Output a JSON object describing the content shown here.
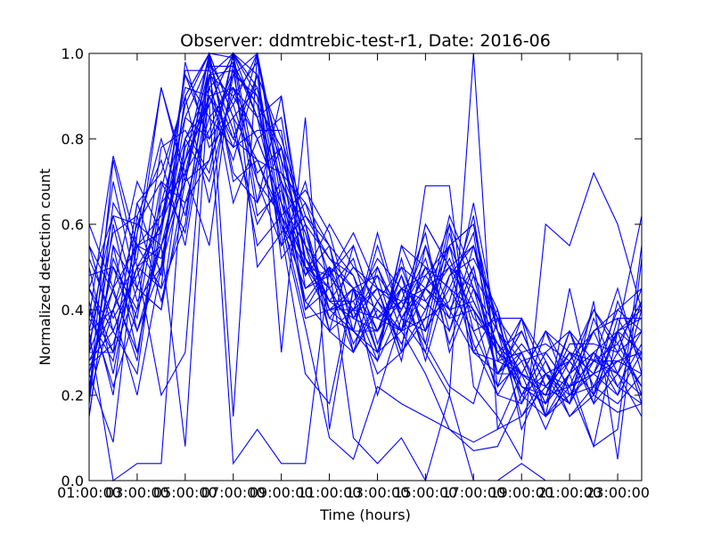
{
  "chart_data": {
    "type": "line",
    "title": "Observer: ddmtrebic-test-r1, Date: 2016-06",
    "xlabel": "Time (hours)",
    "ylabel": "Normalized detection count",
    "xlim": [
      1,
      24
    ],
    "ylim": [
      0.0,
      1.0
    ],
    "x_ticks": [
      {
        "value": 1,
        "label": "01:00:00"
      },
      {
        "value": 3,
        "label": "03:00:00"
      },
      {
        "value": 5,
        "label": "05:00:00"
      },
      {
        "value": 7,
        "label": "07:00:00"
      },
      {
        "value": 9,
        "label": "09:00:00"
      },
      {
        "value": 11,
        "label": "11:00:00"
      },
      {
        "value": 13,
        "label": "13:00:00"
      },
      {
        "value": 15,
        "label": "15:00:00"
      },
      {
        "value": 17,
        "label": "17:00:00"
      },
      {
        "value": 19,
        "label": "19:00:00"
      },
      {
        "value": 21,
        "label": "21:00:00"
      },
      {
        "value": 23,
        "label": "23:00:00"
      }
    ],
    "y_ticks": [
      {
        "value": 0.0,
        "label": "0.0"
      },
      {
        "value": 0.2,
        "label": "0.2"
      },
      {
        "value": 0.4,
        "label": "0.4"
      },
      {
        "value": 0.6,
        "label": "0.6"
      },
      {
        "value": 0.8,
        "label": "0.8"
      },
      {
        "value": 1.0,
        "label": "1.0"
      }
    ],
    "grid": false,
    "legend": "none",
    "line_color": "#0000ff",
    "x": [
      1,
      2,
      3,
      4,
      5,
      6,
      7,
      8,
      9,
      10,
      11,
      12,
      13,
      14,
      15,
      16,
      17,
      18,
      19,
      20,
      21,
      22,
      23,
      24
    ],
    "series": [
      {
        "values": [
          0.3,
          0.45,
          0.55,
          0.62,
          0.8,
          0.92,
          0.98,
          0.85,
          0.7,
          0.55,
          0.48,
          0.4,
          0.38,
          0.42,
          0.45,
          0.5,
          0.55,
          0.35,
          0.25,
          0.2,
          0.22,
          0.25,
          0.28,
          0.3
        ]
      },
      {
        "values": [
          0.45,
          0.35,
          0.5,
          0.6,
          0.75,
          0.88,
          1.0,
          0.9,
          0.75,
          0.6,
          0.52,
          0.45,
          0.4,
          0.35,
          0.5,
          0.45,
          0.4,
          0.3,
          0.22,
          0.18,
          0.25,
          0.3,
          0.35,
          0.4
        ]
      },
      {
        "values": [
          0.25,
          0.5,
          0.4,
          0.55,
          0.7,
          0.95,
          0.9,
          0.8,
          0.65,
          0.5,
          0.45,
          0.35,
          0.3,
          0.45,
          0.4,
          0.55,
          0.6,
          0.28,
          0.3,
          0.15,
          0.2,
          0.22,
          0.18,
          0.25
        ]
      },
      {
        "values": [
          0.4,
          0.3,
          0.45,
          0.65,
          0.85,
          0.8,
          0.95,
          1.0,
          0.72,
          0.58,
          0.4,
          0.42,
          0.5,
          0.38,
          0.35,
          0.6,
          0.45,
          0.32,
          0.2,
          0.25,
          0.28,
          0.2,
          0.3,
          0.35
        ]
      },
      {
        "values": [
          0.2,
          0.6,
          0.35,
          0.5,
          0.9,
          1.0,
          0.85,
          0.75,
          0.6,
          0.45,
          0.5,
          0.38,
          0.45,
          0.4,
          0.55,
          0.4,
          0.5,
          0.25,
          0.35,
          0.22,
          0.18,
          0.3,
          0.25,
          0.2
        ]
      },
      {
        "values": [
          0.35,
          0.4,
          0.6,
          0.7,
          0.65,
          0.75,
          1.0,
          0.95,
          0.8,
          0.62,
          0.55,
          0.48,
          0.35,
          0.5,
          0.45,
          0.38,
          0.65,
          0.35,
          0.28,
          0.3,
          0.22,
          0.35,
          0.4,
          0.45
        ]
      },
      {
        "values": [
          0.5,
          0.25,
          0.55,
          0.45,
          0.6,
          0.98,
          0.88,
          0.7,
          0.55,
          0.7,
          0.45,
          0.3,
          0.4,
          0.35,
          0.6,
          0.5,
          0.4,
          0.2,
          0.18,
          0.35,
          0.3,
          0.25,
          0.2,
          0.3
        ]
      },
      {
        "values": [
          0.15,
          0.55,
          0.3,
          0.58,
          0.95,
          0.85,
          0.78,
          1.0,
          0.68,
          0.5,
          0.38,
          0.45,
          0.3,
          0.55,
          0.42,
          0.35,
          0.55,
          0.3,
          0.25,
          0.2,
          0.35,
          0.28,
          0.45,
          0.25
        ]
      },
      {
        "values": [
          0.3,
          0.7,
          0.45,
          0.4,
          0.8,
          0.7,
          0.92,
          0.85,
          0.9,
          0.55,
          0.42,
          0.5,
          0.45,
          0.3,
          0.38,
          0.62,
          0.48,
          0.38,
          0.3,
          0.18,
          0.25,
          0.4,
          0.3,
          0.22
        ]
      },
      {
        "values": [
          0.42,
          0.2,
          0.62,
          0.75,
          0.55,
          0.9,
          0.8,
          0.95,
          0.62,
          0.48,
          0.55,
          0.35,
          0.28,
          0.4,
          0.5,
          0.45,
          0.35,
          0.22,
          0.38,
          0.28,
          0.15,
          0.22,
          0.35,
          0.38
        ]
      },
      {
        "values": [
          0.25,
          0.45,
          0.7,
          0.58,
          0.88,
          1.0,
          0.72,
          0.65,
          0.78,
          0.6,
          0.35,
          0.4,
          0.52,
          0.45,
          0.3,
          0.55,
          0.6,
          0.35,
          0.15,
          0.22,
          0.3,
          0.18,
          0.25,
          0.42
        ]
      },
      {
        "values": [
          0.55,
          0.35,
          0.25,
          0.65,
          0.72,
          0.82,
          0.96,
          0.88,
          0.58,
          0.65,
          0.48,
          0.55,
          0.38,
          0.35,
          0.45,
          0.4,
          0.3,
          0.28,
          0.25,
          0.35,
          0.2,
          0.3,
          0.22,
          0.18
        ]
      },
      {
        "values": [
          0.2,
          0.75,
          0.5,
          0.45,
          0.98,
          0.78,
          0.85,
          0.92,
          0.7,
          0.42,
          0.5,
          0.32,
          0.42,
          0.5,
          0.35,
          0.48,
          0.52,
          0.4,
          0.22,
          0.18,
          0.28,
          0.35,
          0.38,
          0.28
        ]
      },
      {
        "values": [
          0.38,
          0.28,
          0.58,
          0.8,
          0.62,
          0.95,
          0.65,
          0.8,
          0.85,
          0.52,
          0.4,
          0.45,
          0.35,
          0.42,
          0.58,
          0.3,
          0.45,
          0.25,
          0.32,
          0.25,
          0.22,
          0.25,
          0.4,
          0.35
        ]
      },
      {
        "values": [
          0.48,
          0.5,
          0.35,
          0.55,
          0.78,
          0.88,
          1.0,
          0.7,
          0.62,
          0.68,
          0.58,
          0.38,
          0.48,
          0.3,
          0.4,
          0.52,
          0.38,
          0.32,
          0.2,
          0.3,
          0.35,
          0.22,
          0.28,
          0.3
        ]
      },
      {
        "values": [
          0.28,
          0.4,
          0.52,
          0.92,
          0.7,
          0.75,
          0.9,
          0.98,
          0.75,
          0.4,
          0.45,
          0.52,
          0.32,
          0.48,
          0.35,
          0.45,
          0.58,
          0.22,
          0.28,
          0.15,
          0.25,
          0.3,
          0.2,
          0.4
        ]
      },
      {
        "values": [
          0.35,
          0.62,
          0.42,
          0.5,
          0.85,
          0.98,
          0.82,
          0.6,
          0.7,
          0.58,
          0.38,
          0.35,
          0.55,
          0.38,
          0.48,
          0.4,
          0.42,
          0.3,
          0.35,
          0.22,
          0.3,
          0.28,
          0.32,
          0.22
        ]
      },
      {
        "values": [
          0.45,
          0.3,
          0.65,
          0.48,
          0.9,
          0.65,
          0.95,
          0.9,
          0.55,
          0.62,
          0.52,
          0.48,
          0.3,
          0.52,
          0.32,
          0.58,
          0.35,
          0.38,
          0.18,
          0.28,
          0.18,
          0.38,
          0.25,
          0.35
        ]
      },
      {
        "values": [
          0.22,
          0.52,
          0.38,
          0.7,
          0.58,
          0.92,
          0.78,
          0.82,
          0.82,
          0.45,
          0.48,
          0.4,
          0.45,
          0.28,
          0.55,
          0.35,
          0.5,
          0.25,
          0.3,
          0.32,
          0.28,
          0.2,
          0.42,
          0.28
        ]
      },
      {
        "values": [
          0.52,
          0.38,
          0.48,
          0.6,
          0.95,
          0.8,
          0.88,
          1.0,
          0.65,
          0.55,
          0.35,
          0.55,
          0.38,
          0.45,
          0.42,
          0.5,
          0.45,
          0.35,
          0.22,
          0.2,
          0.32,
          0.32,
          0.3,
          0.45
        ]
      },
      {
        "values": [
          0.18,
          0.65,
          0.55,
          0.52,
          0.75,
          1.0,
          0.7,
          0.75,
          0.72,
          0.65,
          0.55,
          0.3,
          0.5,
          0.35,
          0.38,
          0.42,
          0.62,
          0.28,
          0.38,
          0.25,
          0.2,
          0.25,
          0.35,
          0.2
        ]
      },
      {
        "values": [
          0.4,
          0.22,
          0.4,
          0.78,
          0.82,
          0.72,
          1.0,
          0.85,
          0.6,
          0.5,
          0.42,
          0.42,
          0.28,
          0.55,
          0.5,
          0.38,
          0.4,
          0.32,
          0.25,
          0.35,
          0.25,
          0.35,
          0.22,
          0.32
        ]
      },
      {
        "values": [
          0.32,
          0.58,
          0.62,
          0.42,
          0.65,
          0.85,
          0.92,
          0.72,
          0.78,
          0.48,
          0.6,
          0.5,
          0.42,
          0.32,
          0.45,
          0.55,
          0.32,
          0.2,
          0.3,
          0.18,
          0.35,
          0.18,
          0.38,
          0.38
        ]
      },
      {
        "values": [
          0.6,
          0.45,
          0.28,
          0.68,
          0.92,
          0.9,
          0.75,
          0.95,
          0.52,
          0.6,
          0.4,
          0.35,
          0.35,
          0.48,
          0.28,
          0.48,
          0.55,
          0.38,
          0.2,
          0.3,
          0.22,
          0.28,
          0.28,
          0.25
        ]
      },
      {
        "values": [
          0.27,
          0.32,
          0.5,
          0.55,
          0.7,
          0.95,
          0.96,
          0.62,
          0.68,
          0.4,
          0.5,
          0.45,
          0.48,
          0.4,
          0.52,
          0.32,
          0.48,
          0.25,
          0.35,
          0.22,
          0.28,
          0.4,
          0.32,
          0.42
        ]
      },
      {
        "values": [
          0.25,
          0.09,
          0.58,
          0.92,
          0.72,
          0.97,
          0.97,
          0.88,
          0.78,
          0.52,
          0.42,
          0.38,
          0.35,
          0.45,
          0.48,
          0.55,
          0.42,
          0.3,
          0.25,
          0.2,
          0.3,
          0.25,
          0.35,
          0.3
        ]
      },
      {
        "values": [
          0.35,
          0.0,
          0.04,
          0.04,
          0.8,
          0.88,
          0.04,
          0.12,
          0.04,
          0.04,
          0.5,
          0.1,
          0.04,
          0.1,
          0.0,
          0.2,
          0.0,
          0.0,
          0.04,
          0.0,
          0.0,
          0.0,
          0.0,
          0.0
        ]
      },
      {
        "values": [
          0.45,
          0.62,
          0.6,
          0.55,
          0.08,
          0.95,
          1.0,
          0.92,
          0.6,
          0.36,
          0.1,
          0.05,
          0.22,
          0.18,
          0.15,
          0.12,
          0.09,
          0.12,
          0.25,
          0.22,
          0.18,
          0.28,
          0.25,
          0.15
        ]
      },
      {
        "values": [
          0.28,
          0.35,
          0.5,
          0.2,
          0.3,
          1.0,
          0.15,
          1.0,
          0.3,
          0.85,
          0.12,
          0.45,
          0.3,
          0.35,
          0.25,
          0.12,
          0.07,
          0.08,
          0.2,
          0.15,
          0.22,
          0.08,
          0.12,
          0.55
        ]
      },
      {
        "values": [
          0.2,
          0.4,
          0.2,
          0.5,
          0.72,
          0.55,
          0.98,
          0.5,
          0.58,
          0.25,
          0.18,
          0.45,
          0.2,
          0.38,
          0.3,
          0.2,
          1.0,
          0.12,
          0.15,
          0.25,
          0.15,
          0.2,
          0.35,
          0.18
        ]
      },
      {
        "values": [
          0.15,
          0.55,
          0.45,
          0.4,
          0.7,
          1.0,
          0.85,
          0.55,
          0.62,
          0.38,
          0.4,
          0.4,
          0.25,
          0.3,
          0.69,
          0.69,
          0.22,
          0.15,
          0.05,
          0.6,
          0.55,
          0.72,
          0.6,
          0.4
        ]
      },
      {
        "values": [
          0.3,
          0.3,
          0.65,
          0.72,
          0.9,
          1.0,
          0.99,
          0.65,
          0.9,
          0.5,
          0.48,
          0.58,
          0.45,
          0.42,
          0.32,
          0.22,
          0.18,
          0.38,
          0.38,
          0.15,
          0.45,
          0.2,
          0.16,
          0.18
        ]
      },
      {
        "values": [
          0.38,
          0.76,
          0.55,
          0.58,
          0.96,
          0.96,
          0.8,
          0.75,
          0.62,
          0.52,
          0.45,
          0.35,
          0.58,
          0.38,
          0.45,
          0.6,
          0.3,
          0.4,
          0.12,
          0.25,
          0.18,
          0.42,
          0.05,
          0.52
        ]
      },
      {
        "values": [
          0.55,
          0.44,
          0.3,
          0.6,
          0.75,
          0.9,
          0.92,
          0.8,
          0.65,
          0.42,
          0.35,
          0.3,
          0.42,
          0.35,
          0.6,
          0.5,
          0.3,
          0.25,
          0.25,
          0.12,
          0.25,
          0.08,
          0.35,
          0.62
        ]
      }
    ]
  }
}
